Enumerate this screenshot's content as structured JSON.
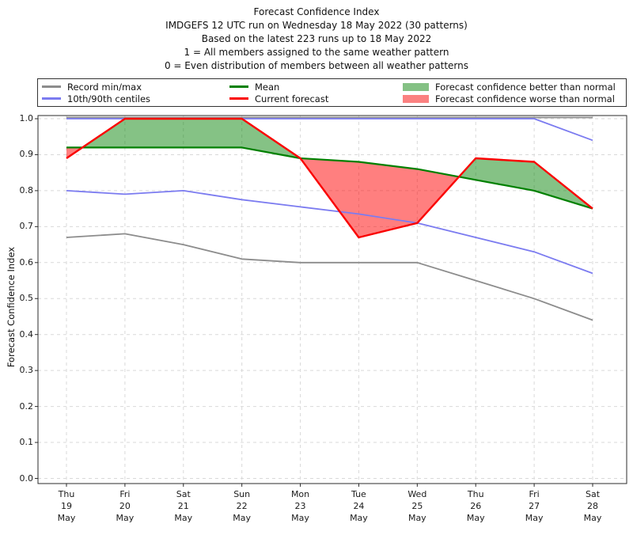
{
  "title": {
    "lines": [
      "Forecast Confidence Index",
      "IMDGEFS 12 UTC run on Wednesday 18 May 2022 (30 patterns)",
      "Based on the latest 223 runs up to 18 May 2022",
      "1 = All members assigned to the same weather pattern",
      "0 = Even distribution of members between all weather patterns"
    ]
  },
  "legend": {
    "items": [
      {
        "label": "Record min/max",
        "swatch": "line",
        "color": "#8c8c8c"
      },
      {
        "label": "10th/90th centiles",
        "swatch": "line",
        "color": "#7b7bf0"
      },
      {
        "label": "Mean",
        "swatch": "line",
        "color": "#008000"
      },
      {
        "label": "Current forecast",
        "swatch": "line",
        "color": "#fa0000"
      },
      {
        "label": "Forecast confidence better than normal",
        "swatch": "patch",
        "color": "#84c184"
      },
      {
        "label": "Forecast confidence worse than normal",
        "swatch": "patch",
        "color": "#fb8181"
      }
    ]
  },
  "chart_data": {
    "type": "line",
    "title": "Forecast Confidence Index",
    "ylabel": "Forecast Confidence Index",
    "ylim": [
      0.0,
      1.0
    ],
    "grid": true,
    "legend_position": "top",
    "x_tick_labels": [
      [
        "Thu",
        "19",
        "May"
      ],
      [
        "Fri",
        "20",
        "May"
      ],
      [
        "Sat",
        "21",
        "May"
      ],
      [
        "Sun",
        "22",
        "May"
      ],
      [
        "Mon",
        "23",
        "May"
      ],
      [
        "Tue",
        "24",
        "May"
      ],
      [
        "Wed",
        "25",
        "May"
      ],
      [
        "Thu",
        "26",
        "May"
      ],
      [
        "Fri",
        "27",
        "May"
      ],
      [
        "Sat",
        "28",
        "May"
      ]
    ],
    "y_tick_labels": [
      "0.0",
      "0.1",
      "0.2",
      "0.3",
      "0.4",
      "0.5",
      "0.6",
      "0.7",
      "0.8",
      "0.9",
      "1.0"
    ],
    "series": [
      {
        "name": "Record max",
        "color": "#8c8c8c",
        "width": 1.8,
        "values": [
          1.0,
          1.0,
          1.0,
          1.0,
          1.0,
          1.0,
          1.0,
          1.0,
          1.0,
          1.0
        ]
      },
      {
        "name": "Record min",
        "color": "#8c8c8c",
        "width": 1.8,
        "values": [
          0.67,
          0.68,
          0.65,
          0.61,
          0.6,
          0.6,
          0.6,
          0.55,
          0.5,
          0.44
        ]
      },
      {
        "name": "90th centile",
        "color": "#7b7bf0",
        "width": 1.8,
        "values": [
          1.0,
          1.0,
          1.0,
          1.0,
          1.0,
          1.0,
          1.0,
          1.0,
          1.0,
          0.94
        ]
      },
      {
        "name": "10th centile",
        "color": "#7b7bf0",
        "width": 1.8,
        "values": [
          0.8,
          0.79,
          0.8,
          0.775,
          0.755,
          0.735,
          0.71,
          0.67,
          0.63,
          0.57
        ]
      },
      {
        "name": "Mean",
        "color": "#008000",
        "width": 2.2,
        "values": [
          0.92,
          0.92,
          0.92,
          0.92,
          0.89,
          0.88,
          0.86,
          0.83,
          0.8,
          0.75
        ]
      },
      {
        "name": "Current forecast",
        "color": "#fa0000",
        "width": 2.4,
        "values": [
          0.89,
          1.0,
          1.0,
          1.0,
          0.89,
          0.67,
          0.71,
          0.89,
          0.88,
          0.75
        ]
      }
    ],
    "fills": [
      {
        "name": "Forecast confidence better than normal",
        "between": [
          "Current forecast",
          "Mean"
        ],
        "where": "above",
        "color": "rgba(0,128,0,0.48)"
      },
      {
        "name": "Forecast confidence worse than normal",
        "between": [
          "Current forecast",
          "Mean"
        ],
        "where": "below",
        "color": "rgba(255,0,0,0.5)"
      }
    ]
  }
}
